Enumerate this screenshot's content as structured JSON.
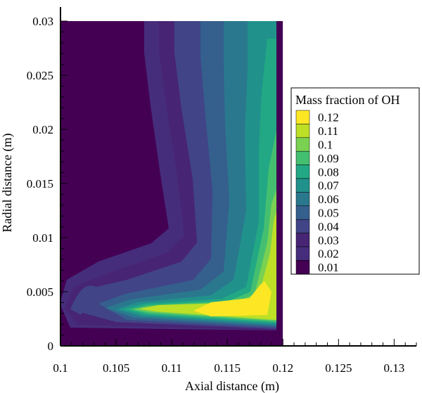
{
  "chart_data": {
    "type": "heatmap",
    "title": "",
    "xlabel": "Axial distance (m)",
    "ylabel": "Radial distance (m)",
    "xlim": [
      0.1,
      0.132
    ],
    "ylim": [
      0,
      0.03
    ],
    "x_ticks": [
      "0.1",
      "0.105",
      "0.11",
      "0.115",
      "0.12",
      "0.125",
      "0.13"
    ],
    "y_ticks": [
      "0",
      "0.005",
      "0.01",
      "0.015",
      "0.02",
      "0.025",
      "0.03"
    ],
    "x_tick_values": [
      0.1,
      0.105,
      0.11,
      0.115,
      0.12,
      0.125,
      0.13
    ],
    "y_tick_values": [
      0,
      0.005,
      0.01,
      0.015,
      0.02,
      0.025,
      0.03
    ],
    "data_domain": {
      "x": [
        0.1,
        0.12
      ],
      "y": [
        0,
        0.03
      ]
    },
    "legend": {
      "title": "Mass fraction of OH",
      "placement": "right",
      "levels": [
        "0.12",
        "0.11",
        "0.1",
        "0.09",
        "0.08",
        "0.07",
        "0.06",
        "0.05",
        "0.04",
        "0.03",
        "0.02",
        "0.01"
      ],
      "colors": [
        "#fde725",
        "#bddf26",
        "#7ad151",
        "#44bf70",
        "#22a884",
        "#21918c",
        "#2a788e",
        "#355f8d",
        "#414487",
        "#482475",
        "#462d7c",
        "#440154"
      ]
    },
    "grid": false
  },
  "colors": {
    "background": "#440154",
    "axis": "#000000"
  }
}
